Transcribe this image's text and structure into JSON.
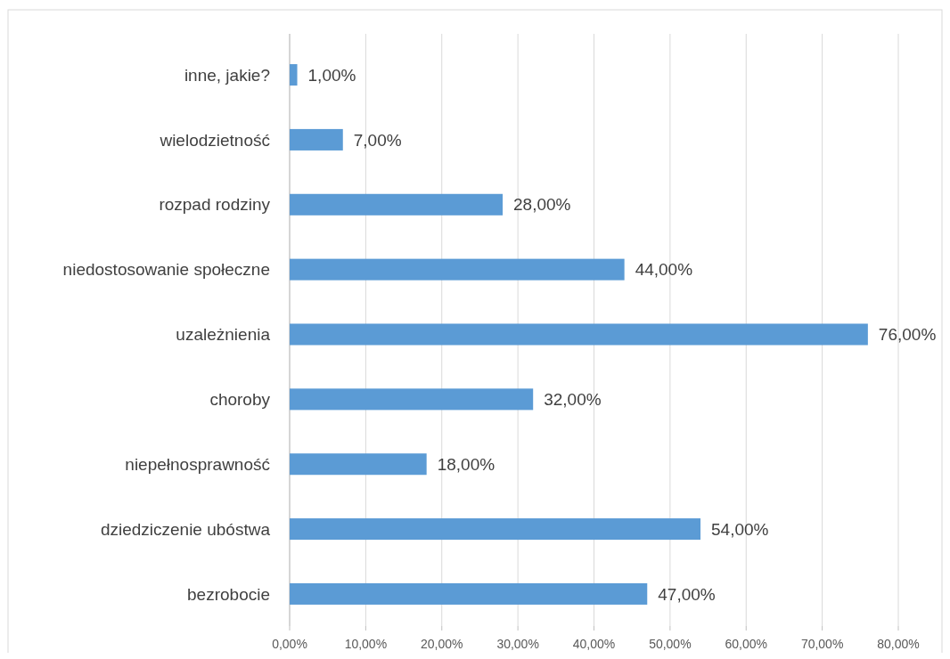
{
  "chart_data": {
    "type": "bar",
    "orientation": "horizontal",
    "categories": [
      "inne, jakie?",
      "wielodzietność",
      "rozpad rodziny",
      "niedostosowanie społeczne",
      "uzależnienia",
      "choroby",
      "niepełnosprawność",
      "dziedziczenie ubóstwa",
      "bezrobocie"
    ],
    "values": [
      1,
      7,
      28,
      44,
      76,
      32,
      18,
      54,
      47
    ],
    "value_labels": [
      "1,00%",
      "7,00%",
      "28,00%",
      "44,00%",
      "76,00%",
      "32,00%",
      "18,00%",
      "54,00%",
      "47,00%"
    ],
    "color": "#5b9bd5",
    "xlim": [
      0,
      80
    ],
    "xticks": [
      {
        "value": 0,
        "label": "0,00%"
      },
      {
        "value": 10,
        "label": "10,00%"
      },
      {
        "value": 20,
        "label": "20,00%"
      },
      {
        "value": 30,
        "label": "30,00%"
      },
      {
        "value": 40,
        "label": "40,00%"
      },
      {
        "value": 50,
        "label": "50,00%"
      },
      {
        "value": 60,
        "label": "60,00%"
      },
      {
        "value": 70,
        "label": "70,00%"
      },
      {
        "value": 80,
        "label": "80,00%"
      }
    ],
    "grid": "x"
  }
}
